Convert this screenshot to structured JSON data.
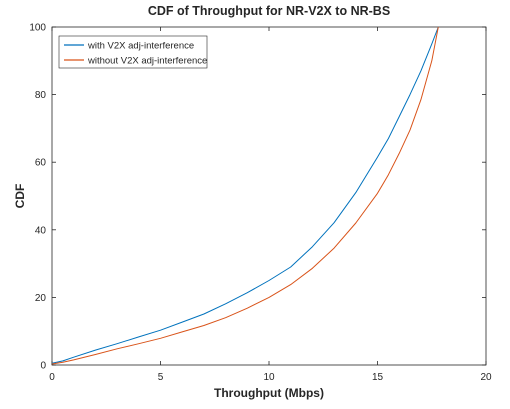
{
  "chart_data": {
    "type": "line",
    "title": "CDF of Throughput for NR-V2X to NR-BS",
    "xlabel": "Throughput (Mbps)",
    "ylabel": "CDF",
    "xlim": [
      0,
      20
    ],
    "ylim": [
      0,
      100
    ],
    "xticks": [
      0,
      5,
      10,
      15,
      20
    ],
    "yticks": [
      0,
      20,
      40,
      60,
      80,
      100
    ],
    "grid": false,
    "legend_position": "top-left",
    "series": [
      {
        "name": "with V2X adj-interference",
        "color": "#0072BD",
        "x": [
          0,
          0.5,
          1,
          2,
          3,
          4,
          5,
          6,
          7,
          8,
          9,
          10,
          11,
          12,
          13,
          14,
          15,
          15.5,
          16,
          16.5,
          17,
          17.5,
          17.8
        ],
        "y": [
          0.5,
          1.2,
          2.3,
          4.4,
          6.3,
          8.3,
          10.3,
          12.7,
          15.1,
          18.1,
          21.4,
          25.0,
          29.0,
          35.0,
          42.1,
          51.0,
          61.5,
          67.0,
          73.5,
          80.0,
          87.0,
          95.0,
          100
        ]
      },
      {
        "name": "without V2X adj-interference",
        "color": "#D95319",
        "x": [
          0,
          0.5,
          1,
          2,
          3,
          4,
          5,
          6,
          7,
          8,
          9,
          10,
          11,
          12,
          13,
          14,
          15,
          15.5,
          16,
          16.5,
          17,
          17.5,
          17.8
        ],
        "y": [
          0.3,
          0.8,
          1.5,
          3.1,
          4.8,
          6.3,
          7.9,
          9.8,
          11.7,
          14.0,
          16.8,
          20.0,
          23.8,
          28.6,
          34.6,
          42.0,
          50.8,
          56.3,
          62.6,
          69.5,
          78.5,
          90.0,
          100
        ]
      }
    ]
  }
}
